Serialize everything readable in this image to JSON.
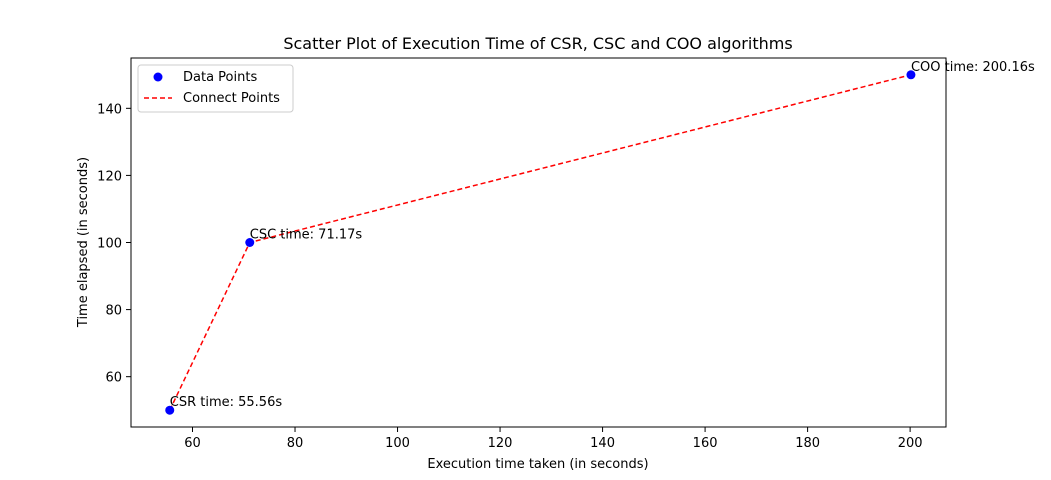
{
  "chart_data": {
    "type": "scatter",
    "title": "Scatter Plot of Execution Time of CSR, CSC and COO algorithms",
    "xlabel": "Execution time taken (in seconds)",
    "ylabel": "Time elapsed (in seconds)",
    "xlim": [
      48,
      207
    ],
    "ylim": [
      45,
      155
    ],
    "xticks": [
      60,
      80,
      100,
      120,
      140,
      160,
      180,
      200
    ],
    "yticks": [
      60,
      80,
      100,
      120,
      140
    ],
    "grid": false,
    "legend_position": "upper-left",
    "series": [
      {
        "name": "Data Points",
        "kind": "scatter",
        "color": "#0000ff",
        "x": [
          55.56,
          71.17,
          200.16
        ],
        "y": [
          50,
          100,
          150
        ]
      },
      {
        "name": "Connect Points",
        "kind": "line",
        "style": "dashed",
        "color": "#ff0000",
        "x": [
          55.56,
          71.17,
          200.16
        ],
        "y": [
          50,
          100,
          150
        ]
      }
    ],
    "annotations": [
      {
        "text": "CSR time: 55.56s",
        "x": 55.56,
        "y": 50
      },
      {
        "text": "CSC time: 71.17s",
        "x": 71.17,
        "y": 100
      },
      {
        "text": "COO time: 200.16s",
        "x": 200.16,
        "y": 150
      }
    ]
  }
}
